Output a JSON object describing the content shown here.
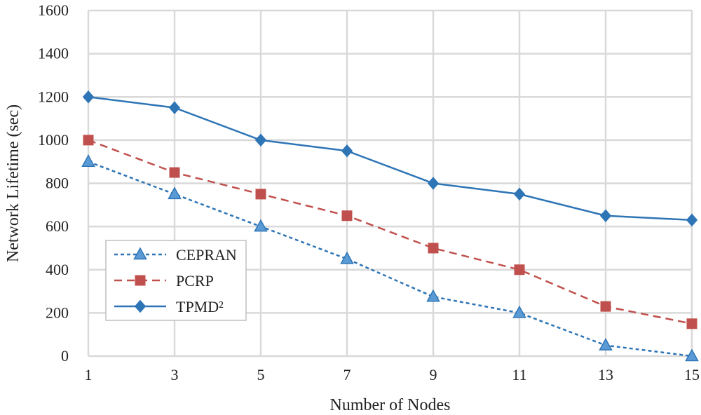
{
  "chart_data": {
    "type": "line",
    "title": "",
    "xlabel": "Number of Nodes",
    "ylabel": "Network Lifetime (sec)",
    "x": [
      1,
      3,
      5,
      7,
      9,
      11,
      13,
      15
    ],
    "xlim": [
      1,
      15
    ],
    "ylim": [
      0,
      1600
    ],
    "yticks": [
      0,
      200,
      400,
      600,
      800,
      1000,
      1200,
      1400,
      1600
    ],
    "grid": true,
    "legend_position": "bottom-left",
    "series": [
      {
        "name": "CEPRAN",
        "values": [
          900,
          750,
          600,
          450,
          275,
          200,
          50,
          0
        ],
        "color": "#2E75B6",
        "marker": "triangle",
        "line_style": "dotted"
      },
      {
        "name": "PCRP",
        "values": [
          1000,
          850,
          750,
          650,
          500,
          400,
          230,
          150
        ],
        "color": "#C0504D",
        "marker": "square",
        "line_style": "dashed"
      },
      {
        "name": "TPMD²",
        "values": [
          1200,
          1150,
          1000,
          950,
          800,
          750,
          650,
          630
        ],
        "color": "#2E75B6",
        "marker": "diamond",
        "line_style": "solid"
      }
    ]
  }
}
